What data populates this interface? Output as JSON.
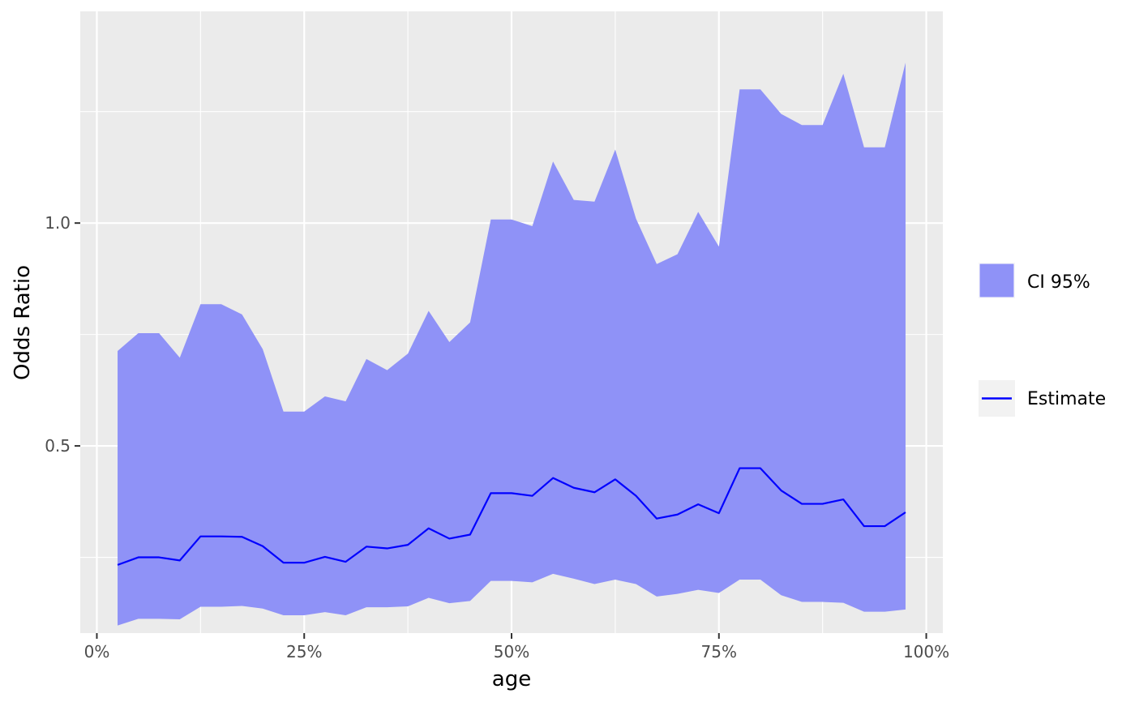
{
  "chart_data": {
    "type": "area",
    "xlabel": "age",
    "ylabel": "Odds Ratio",
    "x_axis": {
      "min": -0.02,
      "max": 1.02,
      "ticks": [
        0,
        0.25,
        0.5,
        0.75,
        1.0
      ],
      "tick_labels": [
        "0%",
        "25%",
        "50%",
        "75%",
        "100%"
      ],
      "minor_ticks": [
        0.125,
        0.375,
        0.625,
        0.875
      ]
    },
    "y_axis": {
      "min": 0.08,
      "max": 1.475,
      "ticks": [
        0.5,
        1.0
      ],
      "tick_labels": [
        "0.5",
        "1.0"
      ],
      "minor_ticks": [
        0.25,
        0.75,
        1.25
      ]
    },
    "grid": true,
    "legend": {
      "position": "right",
      "items": [
        {
          "label": "CI 95%",
          "kind": "fill"
        },
        {
          "label": "Estimate",
          "kind": "line"
        }
      ]
    },
    "colors": {
      "panel": "#ebebeb",
      "grid": "#ffffff",
      "ribbon": "#8f92f7",
      "estimate": "#0000ff",
      "legend_key_bg": "#f2f2f2"
    },
    "x": [
      0.025,
      0.05,
      0.075,
      0.1,
      0.125,
      0.15,
      0.175,
      0.2,
      0.225,
      0.25,
      0.275,
      0.3,
      0.325,
      0.35,
      0.375,
      0.4,
      0.425,
      0.45,
      0.475,
      0.5,
      0.525,
      0.55,
      0.575,
      0.6,
      0.625,
      0.65,
      0.675,
      0.7,
      0.725,
      0.75,
      0.775,
      0.8,
      0.825,
      0.85,
      0.875,
      0.9,
      0.925,
      0.95,
      0.975
    ],
    "series": [
      {
        "name": "Estimate",
        "values": [
          0.233,
          0.25,
          0.25,
          0.243,
          0.297,
          0.297,
          0.296,
          0.275,
          0.238,
          0.238,
          0.251,
          0.24,
          0.274,
          0.27,
          0.278,
          0.315,
          0.292,
          0.301,
          0.394,
          0.394,
          0.388,
          0.428,
          0.406,
          0.396,
          0.425,
          0.388,
          0.337,
          0.346,
          0.369,
          0.349,
          0.45,
          0.45,
          0.4,
          0.37,
          0.37,
          0.38,
          0.32,
          0.32,
          0.351
        ]
      },
      {
        "name": "CI 95%",
        "lower": [
          0.097,
          0.112,
          0.112,
          0.111,
          0.139,
          0.139,
          0.141,
          0.135,
          0.12,
          0.12,
          0.127,
          0.12,
          0.138,
          0.138,
          0.14,
          0.159,
          0.147,
          0.152,
          0.197,
          0.197,
          0.194,
          0.213,
          0.202,
          0.19,
          0.2,
          0.19,
          0.162,
          0.168,
          0.177,
          0.17,
          0.2,
          0.2,
          0.165,
          0.15,
          0.15,
          0.148,
          0.128,
          0.128,
          0.133
        ],
        "upper": [
          0.713,
          0.753,
          0.753,
          0.698,
          0.818,
          0.818,
          0.795,
          0.717,
          0.577,
          0.577,
          0.611,
          0.6,
          0.695,
          0.67,
          0.707,
          0.803,
          0.733,
          0.777,
          1.008,
          1.008,
          0.993,
          1.138,
          1.052,
          1.048,
          1.165,
          1.01,
          0.908,
          0.93,
          1.025,
          0.947,
          1.3,
          1.3,
          1.245,
          1.22,
          1.22,
          1.335,
          1.17,
          1.17,
          1.36
        ]
      }
    ]
  }
}
